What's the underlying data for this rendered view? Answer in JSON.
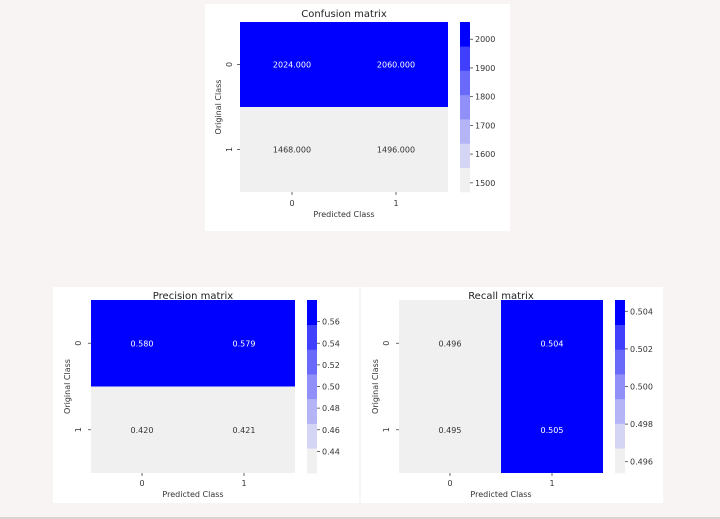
{
  "chart_data": [
    {
      "type": "heatmap",
      "title": "Confusion matrix",
      "xlabel": "Predicted Class",
      "ylabel": "Original Class",
      "x_ticks": [
        "0",
        "1"
      ],
      "y_ticks": [
        "0",
        "1"
      ],
      "values": [
        [
          2024.0,
          2060.0
        ],
        [
          1468.0,
          1496.0
        ]
      ],
      "cell_labels": [
        [
          "2024.000",
          "2060.000"
        ],
        [
          "1468.000",
          "1496.000"
        ]
      ],
      "colorbar": {
        "min": 1468.0,
        "max": 2060.0,
        "ticks": [
          "1500",
          "1600",
          "1700",
          "1800",
          "1900",
          "2000"
        ],
        "tick_values": [
          1500,
          1600,
          1700,
          1800,
          1900,
          2000
        ]
      },
      "colors": [
        "#f0f0f0",
        "#d4d4f5",
        "#b4b4f7",
        "#9090f8",
        "#6a6afa",
        "#4040fc",
        "#0000ff"
      ]
    },
    {
      "type": "heatmap",
      "title": "Precision matrix",
      "xlabel": "Predicted Class",
      "ylabel": "Original Class",
      "x_ticks": [
        "0",
        "1"
      ],
      "y_ticks": [
        "0",
        "1"
      ],
      "values": [
        [
          0.58,
          0.579
        ],
        [
          0.42,
          0.421
        ]
      ],
      "cell_labels": [
        [
          "0.580",
          "0.579"
        ],
        [
          "0.420",
          "0.421"
        ]
      ],
      "colorbar": {
        "min": 0.42,
        "max": 0.58,
        "ticks": [
          "0.44",
          "0.46",
          "0.48",
          "0.50",
          "0.52",
          "0.54",
          "0.56"
        ],
        "tick_values": [
          0.44,
          0.46,
          0.48,
          0.5,
          0.52,
          0.54,
          0.56
        ]
      },
      "colors": [
        "#f0f0f0",
        "#d4d4f5",
        "#b4b4f7",
        "#9090f8",
        "#6a6afa",
        "#4040fc",
        "#0000ff"
      ]
    },
    {
      "type": "heatmap",
      "title": "Recall matrix",
      "xlabel": "Predicted Class",
      "ylabel": "Original Class",
      "x_ticks": [
        "0",
        "1"
      ],
      "y_ticks": [
        "0",
        "1"
      ],
      "values": [
        [
          0.496,
          0.504
        ],
        [
          0.495,
          0.505
        ]
      ],
      "cell_labels": [
        [
          "0.496",
          "0.504"
        ],
        [
          "0.495",
          "0.505"
        ]
      ],
      "colorbar": {
        "min": 0.4954,
        "max": 0.5046,
        "ticks": [
          "0.496",
          "0.498",
          "0.500",
          "0.502",
          "0.504"
        ],
        "tick_values": [
          0.496,
          0.498,
          0.5,
          0.502,
          0.504
        ]
      },
      "colors": [
        "#f0f0f0",
        "#d4d4f5",
        "#b4b4f7",
        "#9090f8",
        "#6a6afa",
        "#4040fc",
        "#0000ff"
      ]
    }
  ]
}
